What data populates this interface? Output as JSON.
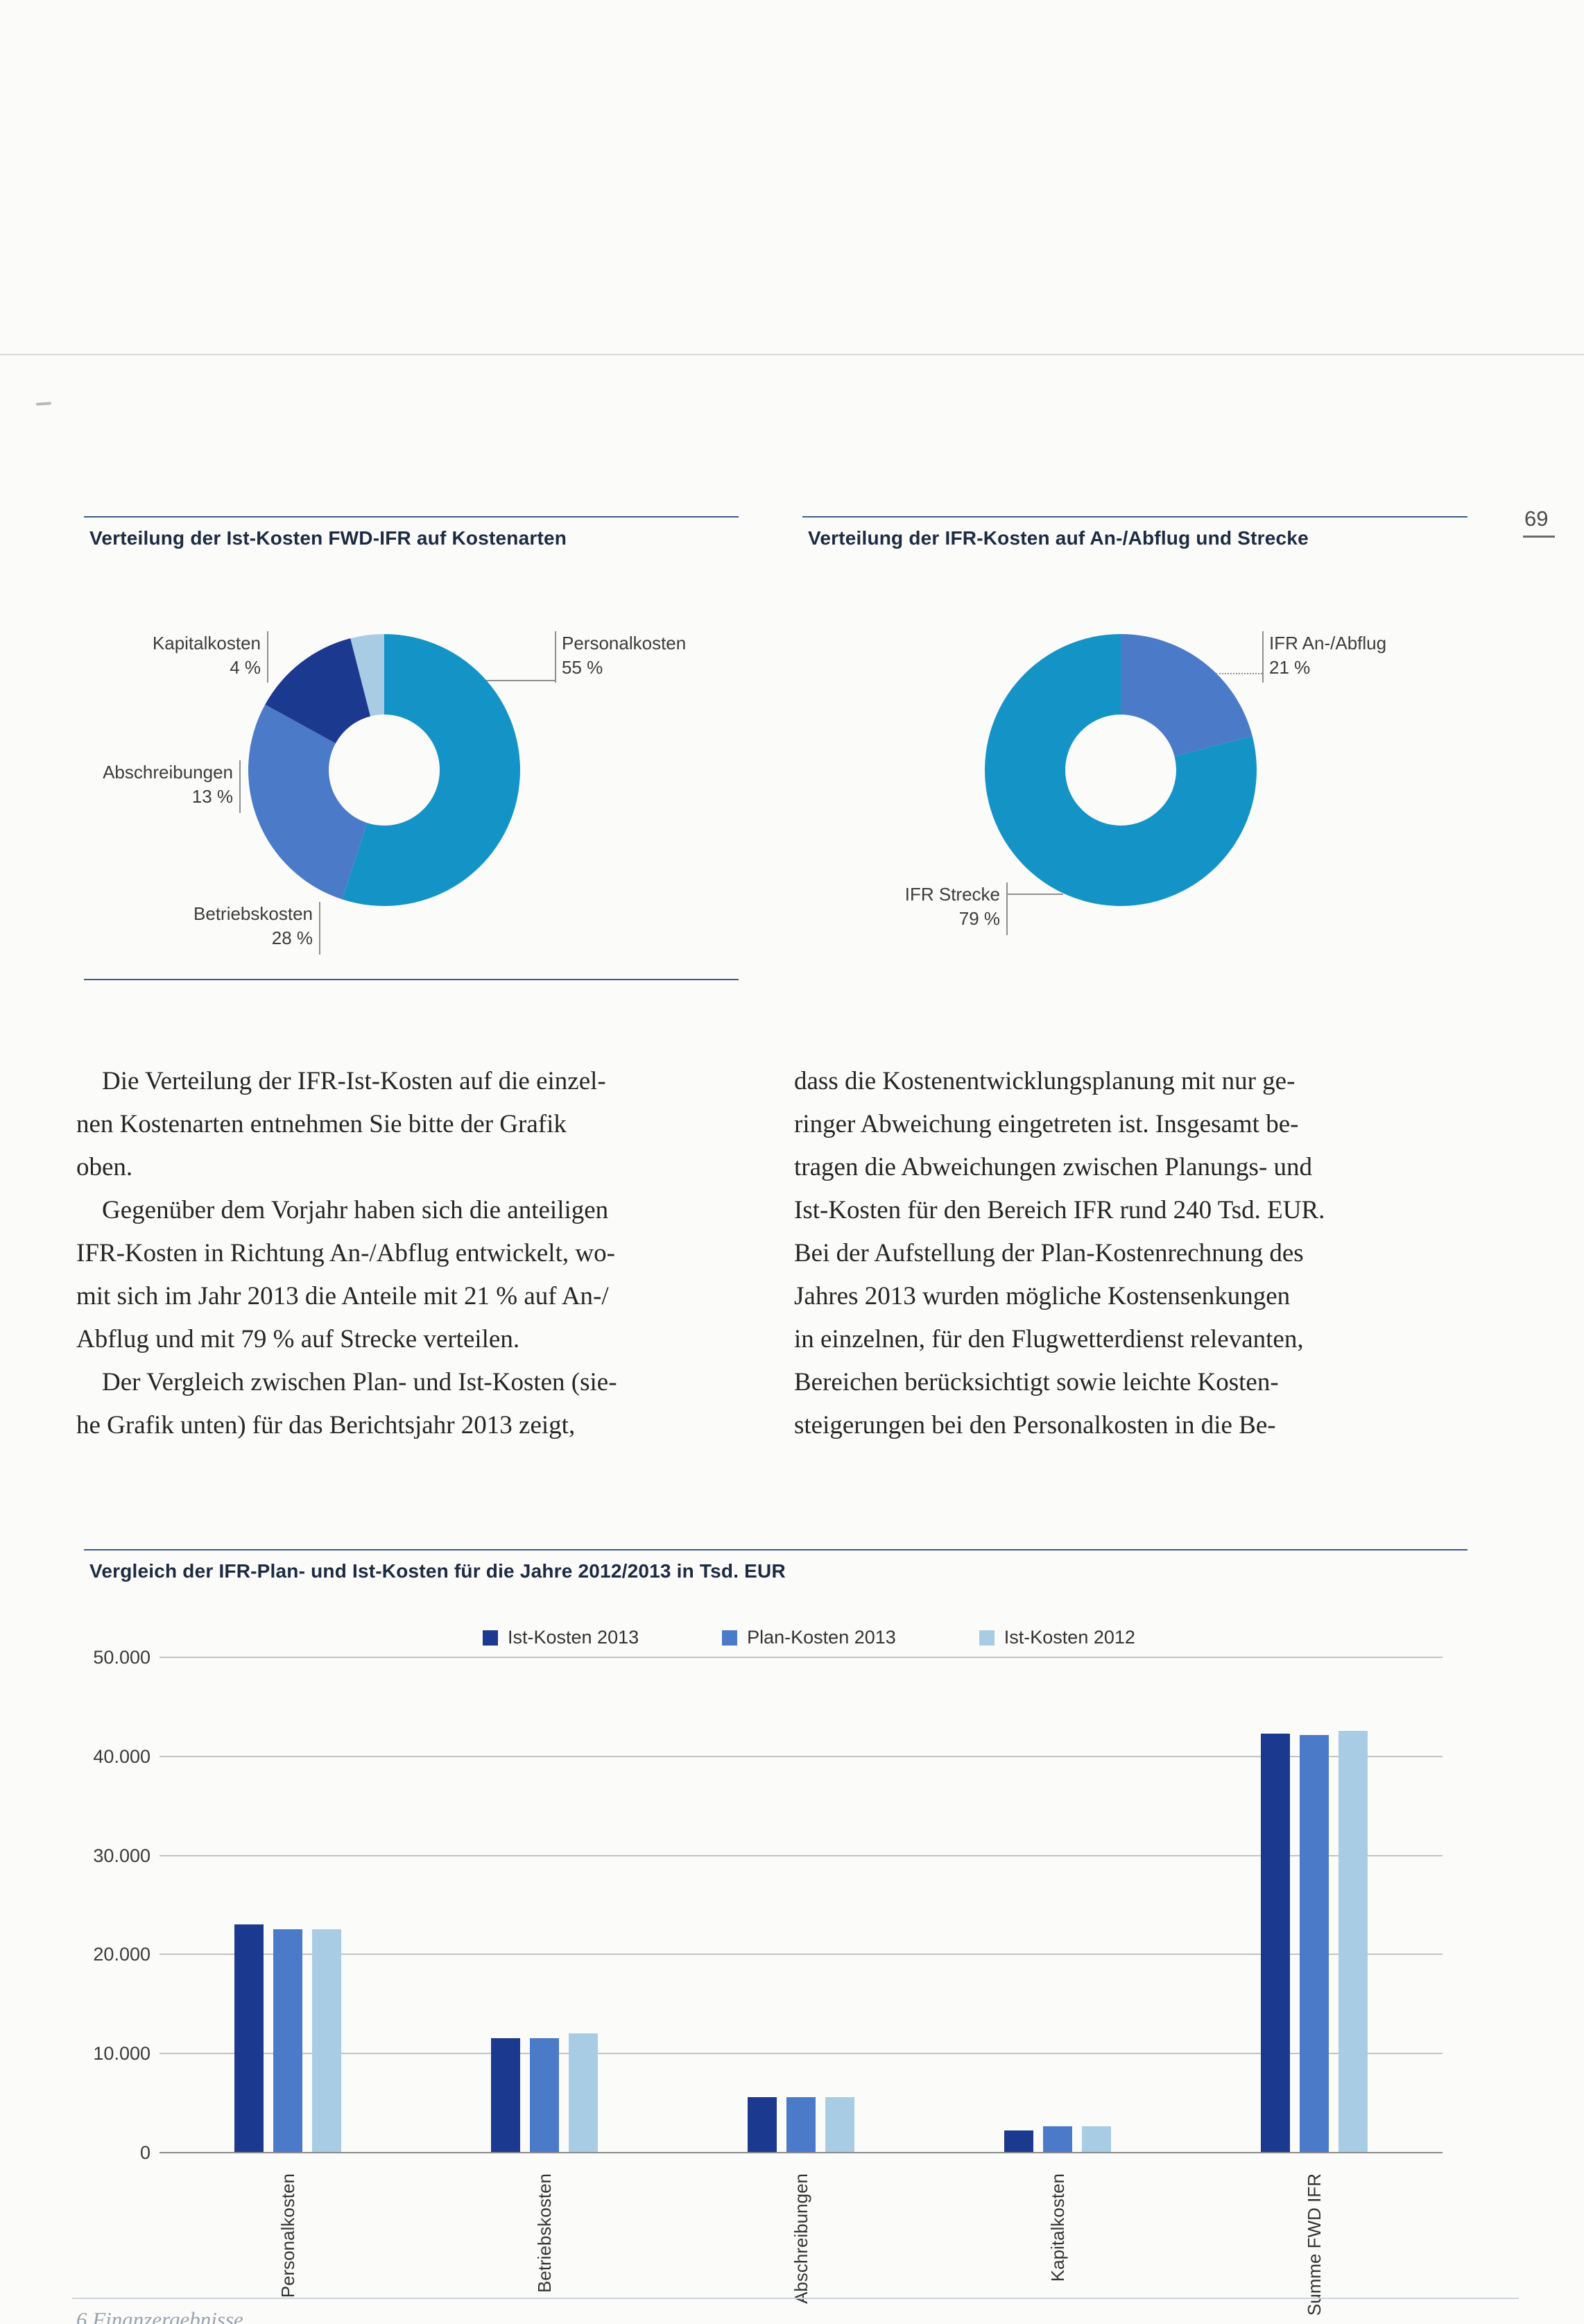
{
  "page": {
    "number": "69",
    "footer_text": "6 Finanzergebnisse"
  },
  "colors": {
    "teal": "#1494c6",
    "medium_blue": "#4b7bc8",
    "light_blue": "#a9cce5",
    "dark_navy": "#1c3990",
    "rule_navy": "#3d5a88"
  },
  "charts": {
    "left_title": "Verteilung der Ist-Kosten FWD-IFR auf Kostenarten",
    "right_title": "Verteilung der IFR-Kosten auf An-/Abflug und Strecke",
    "bar_title": "Vergleich der IFR-Plan- und Ist-Kosten für die Jahre 2012/2013 in Tsd. EUR"
  },
  "donut_left_labels": {
    "personalkosten": {
      "name": "Personalkosten",
      "pct": "55 %"
    },
    "kapitalkosten": {
      "name": "Kapitalkosten",
      "pct": "4 %"
    },
    "abschreibungen": {
      "name": "Abschreibungen",
      "pct": "13 %"
    },
    "betriebskosten": {
      "name": "Betriebskosten",
      "pct": "28 %"
    }
  },
  "donut_right_labels": {
    "anabflug": {
      "name": "IFR An-/Abflug",
      "pct": "21 %"
    },
    "strecke": {
      "name": "IFR Strecke",
      "pct": "79 %"
    }
  },
  "body": {
    "col1": [
      " Die Verteilung der IFR-Ist-Kosten auf die einzel-",
      "nen Kostenarten entnehmen Sie bitte der Grafik",
      "oben.",
      " Gegenüber dem Vorjahr haben sich die anteiligen",
      "IFR-Kosten in Richtung An-/Abflug entwickelt, wo-",
      "mit sich im Jahr 2013 die Anteile mit 21 % auf An-/",
      "Abflug und mit 79 % auf Strecke verteilen.",
      " Der Vergleich zwischen Plan- und Ist-Kosten (sie-",
      "he Grafik unten) für das Berichtsjahr 2013 zeigt,"
    ],
    "col2": [
      "dass die Kostenentwicklungsplanung mit nur ge-",
      "ringer Abweichung eingetreten ist. Insgesamt be-",
      "tragen die Abweichungen zwischen Planungs- und",
      "Ist-Kosten für den Bereich IFR rund 240 Tsd. EUR.",
      "Bei der Aufstellung der Plan-Kostenrechnung des",
      "Jahres 2013 wurden mögliche Kostensenkungen",
      "in einzelnen, für den Flugwetterdienst relevanten,",
      "Bereichen berücksichtigt sowie leichte Kosten-",
      "steigerungen bei den Personalkosten in die Be-"
    ]
  },
  "chart_data": [
    {
      "type": "pie",
      "title": "Verteilung der Ist-Kosten FWD-IFR auf Kostenarten",
      "unit": "%",
      "slices": [
        {
          "label": "Personalkosten",
          "value": 55,
          "color": "#1494c6"
        },
        {
          "label": "Betriebskosten",
          "value": 28,
          "color": "#4b7bc8"
        },
        {
          "label": "Abschreibungen",
          "value": 13,
          "color": "#1c3990"
        },
        {
          "label": "Kapitalkosten",
          "value": 4,
          "color": "#a9cce5"
        }
      ]
    },
    {
      "type": "pie",
      "title": "Verteilung der IFR-Kosten auf An-/Abflug und Strecke",
      "unit": "%",
      "slices": [
        {
          "label": "IFR An-/Abflug",
          "value": 21,
          "color": "#4b7bc8"
        },
        {
          "label": "IFR Strecke",
          "value": 79,
          "color": "#1494c6"
        }
      ]
    },
    {
      "type": "bar",
      "title": "Vergleich der IFR-Plan- und Ist-Kosten für die Jahre 2012/2013 in Tsd. EUR",
      "categories": [
        "Personalkosten",
        "Betriebskosten",
        "Abschreibungen",
        "Kapitalkosten",
        "Summe FWD IFR"
      ],
      "series": [
        {
          "name": "Ist-Kosten 2013",
          "color": "#1c3990",
          "values": [
            23000,
            11500,
            5500,
            2200,
            42200
          ]
        },
        {
          "name": "Plan-Kosten 2013",
          "color": "#4b7bc8",
          "values": [
            22500,
            11500,
            5500,
            2600,
            42100
          ]
        },
        {
          "name": "Ist-Kosten 2012",
          "color": "#a9cce5",
          "values": [
            22500,
            12000,
            5500,
            2600,
            42500
          ]
        }
      ],
      "ylim": [
        0,
        50000
      ],
      "ytick_labels": [
        "0",
        "10.000",
        "20.000",
        "30.000",
        "40.000",
        "50.000"
      ],
      "ylabel": "",
      "xlabel": "",
      "grid": true,
      "legend_position": "top"
    }
  ]
}
